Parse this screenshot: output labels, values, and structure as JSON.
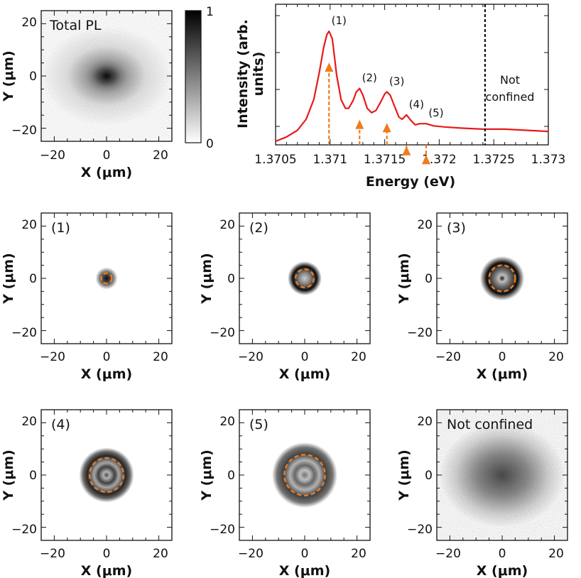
{
  "chart_data": {
    "colors": {
      "curve": "#e8191b",
      "arrow": "#f07b1c",
      "ring": "#f07b1c",
      "frame": "#111111"
    },
    "total_map": {
      "label": "Total PL",
      "xlabel": "X (μm)",
      "ylabel": "Y (μm)",
      "xticks": [
        "−20",
        "0",
        "20"
      ],
      "yticks": [
        "20",
        "0",
        "−20"
      ],
      "xlim": [
        -25,
        25
      ],
      "ylim": [
        -25,
        25
      ]
    },
    "colorbar": {
      "max_label": "1",
      "min_label": "0",
      "range": [
        0,
        1
      ]
    },
    "spectrum": {
      "type": "line",
      "xlabel": "Energy (eV)",
      "ylabel_line1": "Intensity (arb.",
      "ylabel_line2": "units)",
      "xlim": [
        1.3705,
        1.373
      ],
      "xticks": [
        "1.3705",
        "1.371",
        "1.3715",
        "1.372",
        "1.3725",
        "1.373"
      ],
      "peaks": [
        {
          "label": "(1)",
          "energy": 1.37099
        },
        {
          "label": "(2)",
          "energy": 1.37127
        },
        {
          "label": "(3)",
          "energy": 1.37152
        },
        {
          "label": "(4)",
          "energy": 1.3717
        },
        {
          "label": "(5)",
          "energy": 1.37188
        }
      ],
      "cutoff_energy": 1.37242,
      "cutoff_label_line1": "Not",
      "cutoff_label_line2": "confined",
      "curve": {
        "x": [
          1.3705,
          1.3706,
          1.3707,
          1.37078,
          1.37085,
          1.3709,
          1.37094,
          1.37097,
          1.37099,
          1.37102,
          1.37106,
          1.3711,
          1.37114,
          1.37117,
          1.37121,
          1.37124,
          1.37127,
          1.3713,
          1.37134,
          1.37138,
          1.37142,
          1.37147,
          1.3715,
          1.37152,
          1.37155,
          1.37159,
          1.37163,
          1.37166,
          1.3717,
          1.37174,
          1.37178,
          1.37182,
          1.37188,
          1.37195,
          1.37205,
          1.3722,
          1.3724,
          1.3726,
          1.3728,
          1.373
        ],
        "y": [
          0.0,
          0.04,
          0.1,
          0.2,
          0.38,
          0.62,
          0.85,
          0.97,
          1.0,
          0.93,
          0.6,
          0.38,
          0.3,
          0.3,
          0.37,
          0.45,
          0.48,
          0.42,
          0.3,
          0.26,
          0.28,
          0.37,
          0.43,
          0.45,
          0.42,
          0.32,
          0.22,
          0.2,
          0.24,
          0.19,
          0.15,
          0.16,
          0.16,
          0.14,
          0.13,
          0.12,
          0.11,
          0.11,
          0.1,
          0.09
        ]
      }
    },
    "mode_maps": [
      {
        "label": "(1)",
        "xlabel": "X (μm)",
        "ylabel": "Y (μm)",
        "xticks": [
          "−20",
          "0",
          "20"
        ],
        "yticks": [
          "20",
          "0",
          "−20"
        ],
        "ring_radius_um": 2
      },
      {
        "label": "(2)",
        "xlabel": "X (μm)",
        "ylabel": "Y (μm)",
        "xticks": [
          "−20",
          "0",
          "20"
        ],
        "yticks": [
          "20",
          "0",
          "−20"
        ],
        "ring_radius_um": 3.5
      },
      {
        "label": "(3)",
        "xlabel": "X (μm)",
        "ylabel": "Y (μm)",
        "xticks": [
          "−20",
          "0",
          "20"
        ],
        "yticks": [
          "20",
          "0",
          "−20"
        ],
        "ring_radius_um": 5
      },
      {
        "label": "(4)",
        "xlabel": "X (μm)",
        "ylabel": "Y (μm)",
        "xticks": [
          "−20",
          "0",
          "20"
        ],
        "yticks": [
          "20",
          "0",
          "−20"
        ],
        "ring_radius_um": 6.5
      },
      {
        "label": "(5)",
        "xlabel": "X (μm)",
        "ylabel": "Y (μm)",
        "xticks": [
          "−20",
          "0",
          "20"
        ],
        "yticks": [
          "20",
          "0",
          "−20"
        ],
        "ring_radius_um": 7.8
      },
      {
        "label": "Not confined",
        "xlabel": "X (μm)",
        "ylabel": "Y (μm)",
        "xticks": [
          "−20",
          "0",
          "20"
        ],
        "yticks": [
          "20",
          "0",
          "−20"
        ],
        "ring_radius_um": null
      }
    ]
  }
}
